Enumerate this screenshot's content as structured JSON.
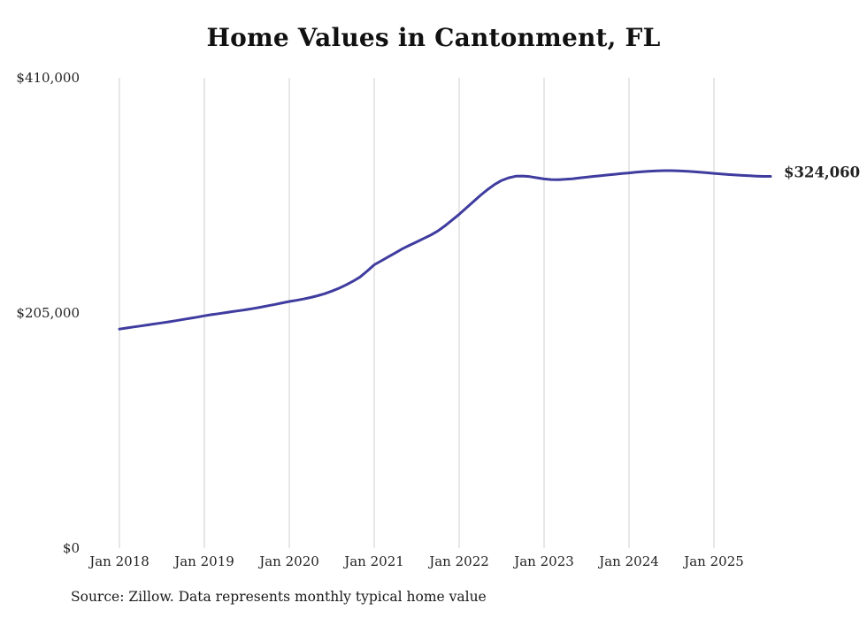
{
  "title": "Home Values in Cantonment, FL",
  "source_note": "Source: Zillow. Data represents monthly typical home value",
  "end_label": "$324,060",
  "colors": {
    "line": "#3f3c9f",
    "grid": "#cfcfcf",
    "title_text": "#111111",
    "axis_text": "#222222"
  },
  "chart_data": {
    "type": "line",
    "title": "Home Values in Cantonment, FL",
    "xlabel": "",
    "ylabel": "",
    "x_interval": "monthly",
    "x_start": "Jan 2018",
    "x_end": "Sep 2025",
    "x_tick_labels": [
      "Jan 2018",
      "Jan 2019",
      "Jan 2020",
      "Jan 2021",
      "Jan 2022",
      "Jan 2023",
      "Jan 2024",
      "Jan 2025"
    ],
    "y_ticks": [
      0,
      205000,
      410000
    ],
    "y_tick_labels": [
      "$0",
      "$205,000",
      "$410,000"
    ],
    "ylim": [
      0,
      410000
    ],
    "grid": "vertical-only",
    "legend": "none",
    "end_value": 324060,
    "values": [
      191000,
      191900,
      192800,
      193700,
      194600,
      195500,
      196400,
      197300,
      198300,
      199400,
      200400,
      201400,
      202500,
      203500,
      204400,
      205300,
      206200,
      207100,
      208000,
      209000,
      210100,
      211300,
      212500,
      213800,
      215000,
      216000,
      217200,
      218500,
      220000,
      221800,
      224000,
      226500,
      229400,
      232700,
      236400,
      241500,
      247000,
      250500,
      254000,
      257500,
      261000,
      264000,
      267000,
      270000,
      273000,
      276500,
      281000,
      286000,
      291000,
      296500,
      302000,
      307500,
      312500,
      317000,
      320500,
      322800,
      324200,
      324400,
      323800,
      322800,
      321800,
      321300,
      321200,
      321500,
      322000,
      322700,
      323400,
      324100,
      324700,
      325300,
      325900,
      326500,
      327100,
      327700,
      328200,
      328600,
      328900,
      329100,
      329100,
      328900,
      328600,
      328200,
      327700,
      327200,
      326700,
      326200,
      325700,
      325300,
      324900,
      324600,
      324300,
      324100,
      324060
    ]
  }
}
